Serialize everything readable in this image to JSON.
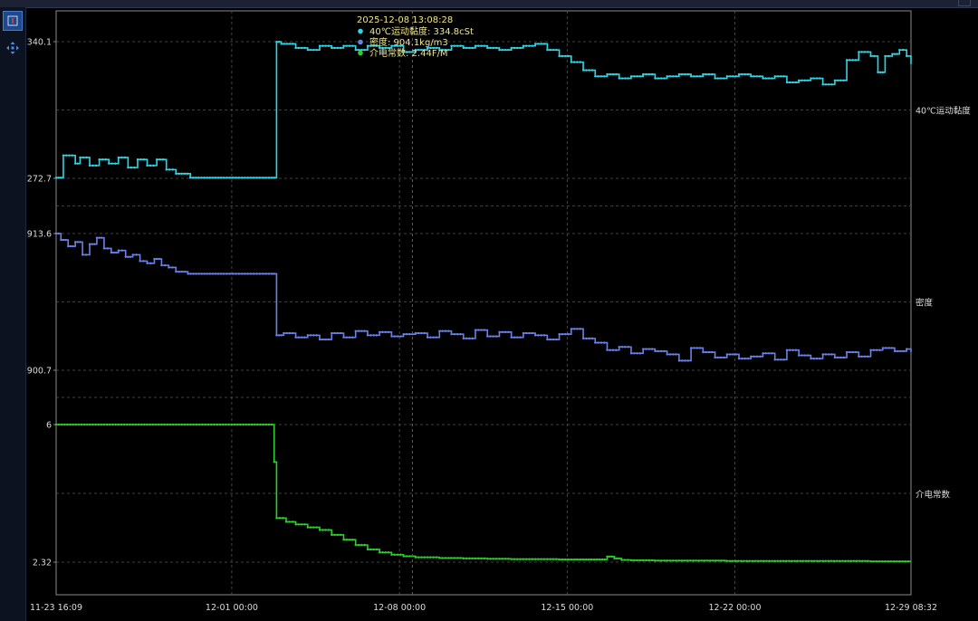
{
  "toolbar": {
    "items": [
      {
        "icon": "zoom-tool-icon",
        "active": true
      },
      {
        "icon": "pan-arrows-icon",
        "active": false
      }
    ]
  },
  "tooltip": {
    "timestamp": "2025-12-08 13:08:28",
    "lines": [
      {
        "text": "40℃运动黏度: 334.8cSt",
        "color": "#2fd6e6"
      },
      {
        "text": "密度: 904.1kg/m3",
        "color": "#6a82e8"
      },
      {
        "text": "介电常数: 2.44F/M",
        "color": "#2ccf2c"
      }
    ]
  },
  "colors": {
    "background": "#000000",
    "grid": "#555555",
    "cursor": "#c0392b",
    "viscosity": "#2fd6e6",
    "density": "#6a82e8",
    "dielectric": "#2ccf2c"
  },
  "chart_data": {
    "type": "line",
    "x_ticks": [
      "11-23 16:09",
      "12-01 00:00",
      "12-08 00:00",
      "12-15 00:00",
      "12-22 00:00",
      "12-29 08:32"
    ],
    "x_tick_days": [
      0,
      7.33,
      14.33,
      21.33,
      28.33,
      35.68
    ],
    "x_range_days": [
      0,
      35.68
    ],
    "cursor_day": 14.87,
    "grid": true,
    "panels": [
      {
        "name": "40℃运动黏度",
        "color": "#2fd6e6",
        "yticks": [
          "340.1",
          "272.7"
        ],
        "ytick_values": [
          340.1,
          272.7
        ],
        "ylim": [
          272.7,
          340.1
        ],
        "x": [
          0,
          0.3,
          0.8,
          1.0,
          1.4,
          1.8,
          2.2,
          2.6,
          3.0,
          3.4,
          3.8,
          4.2,
          4.6,
          5.0,
          5.6,
          7.0,
          8.0,
          9.0,
          9.1,
          9.2,
          9.4,
          10,
          10.5,
          11,
          11.5,
          12,
          12.5,
          13,
          13.5,
          14,
          14.5,
          15,
          15.5,
          16,
          16.5,
          17,
          17.5,
          18,
          18.5,
          19,
          19.5,
          20,
          20.5,
          21,
          21.5,
          22,
          22.5,
          23,
          23.5,
          24,
          24.5,
          25,
          25.5,
          26,
          26.5,
          27,
          27.5,
          28,
          28.5,
          29,
          29.5,
          30,
          30.5,
          31,
          31.5,
          32,
          32.5,
          33,
          33.5,
          34,
          34.3,
          34.6,
          34.9,
          35.2,
          35.5,
          35.68
        ],
        "y": [
          273,
          284,
          280,
          283,
          279,
          282,
          280,
          283,
          278,
          282,
          279,
          282,
          277,
          275,
          273,
          273,
          273,
          273,
          273,
          340,
          339,
          337,
          336,
          338,
          337,
          338,
          336,
          338,
          337,
          338,
          335,
          336,
          337,
          336,
          338,
          337,
          338,
          337,
          336,
          337,
          338,
          339,
          336,
          333,
          330,
          326,
          323,
          324,
          322,
          323,
          324,
          322,
          323,
          324,
          323,
          324,
          322,
          323,
          324,
          323,
          322,
          323,
          320,
          321,
          322,
          319,
          321,
          331,
          335,
          333,
          325,
          333,
          334,
          336,
          333,
          329
        ]
      },
      {
        "name": "密度",
        "color": "#6a82e8",
        "yticks": [
          "913.6",
          "900.7"
        ],
        "ytick_values": [
          913.6,
          900.7
        ],
        "ylim": [
          900.7,
          913.6
        ],
        "x": [
          0,
          0.2,
          0.5,
          0.8,
          1.1,
          1.4,
          1.7,
          2.0,
          2.3,
          2.6,
          2.9,
          3.2,
          3.5,
          3.8,
          4.1,
          4.4,
          4.7,
          5.0,
          5.5,
          7.0,
          8.0,
          9.0,
          9.2,
          9.5,
          10,
          10.5,
          11,
          11.5,
          12,
          12.5,
          13,
          13.5,
          14,
          14.5,
          15,
          15.5,
          16,
          16.5,
          17,
          17.5,
          18,
          18.5,
          19,
          19.5,
          20,
          20.5,
          21,
          21.5,
          22,
          22.5,
          23,
          23.5,
          24,
          24.5,
          25,
          25.5,
          26,
          26.5,
          27,
          27.5,
          28,
          28.5,
          29,
          29.5,
          30,
          30.5,
          31,
          31.5,
          32,
          32.5,
          33,
          33.5,
          34,
          34.5,
          35,
          35.5,
          35.68
        ],
        "y": [
          913.6,
          913.0,
          912.4,
          912.8,
          911.6,
          912.6,
          913.2,
          912.2,
          911.8,
          912.0,
          911.4,
          911.6,
          911.0,
          910.8,
          911.2,
          910.6,
          910.4,
          910.0,
          909.8,
          909.8,
          909.8,
          909.8,
          904.0,
          904.2,
          903.8,
          904.0,
          903.6,
          904.2,
          903.8,
          904.4,
          904.0,
          904.3,
          903.9,
          904.1,
          904.2,
          903.8,
          904.4,
          904.1,
          903.7,
          904.5,
          903.9,
          904.3,
          903.8,
          904.2,
          904.0,
          903.6,
          904.1,
          904.6,
          903.7,
          903.3,
          902.6,
          902.9,
          902.3,
          902.7,
          902.5,
          902.2,
          901.6,
          902.8,
          902.4,
          901.9,
          902.2,
          901.8,
          902.0,
          902.3,
          901.7,
          902.6,
          902.1,
          901.8,
          902.2,
          901.9,
          902.4,
          902.0,
          902.6,
          902.8,
          902.5,
          902.7,
          902.4
        ]
      },
      {
        "name": "介电常数",
        "color": "#2ccf2c",
        "yticks": [
          "6",
          "2.32"
        ],
        "ytick_values": [
          6,
          2.32
        ],
        "ylim": [
          2.32,
          6
        ],
        "x": [
          0,
          2,
          5,
          7.33,
          9.0,
          9.1,
          9.2,
          9.6,
          10.0,
          10.5,
          11.0,
          11.5,
          12.0,
          12.5,
          13.0,
          13.5,
          14.0,
          14.5,
          15.0,
          16.0,
          17.0,
          18.0,
          19.0,
          20.0,
          21.0,
          22.0,
          22.8,
          23.0,
          23.3,
          23.6,
          24.0,
          25.0,
          26.0,
          28.0,
          30.0,
          32.0,
          34.0,
          35.68
        ],
        "y": [
          6,
          6,
          6,
          6,
          6,
          5.0,
          3.5,
          3.4,
          3.33,
          3.25,
          3.18,
          3.05,
          2.92,
          2.78,
          2.66,
          2.58,
          2.52,
          2.48,
          2.45,
          2.43,
          2.42,
          2.41,
          2.4,
          2.4,
          2.39,
          2.39,
          2.39,
          2.47,
          2.42,
          2.38,
          2.37,
          2.36,
          2.36,
          2.35,
          2.35,
          2.35,
          2.34,
          2.34
        ]
      }
    ]
  }
}
